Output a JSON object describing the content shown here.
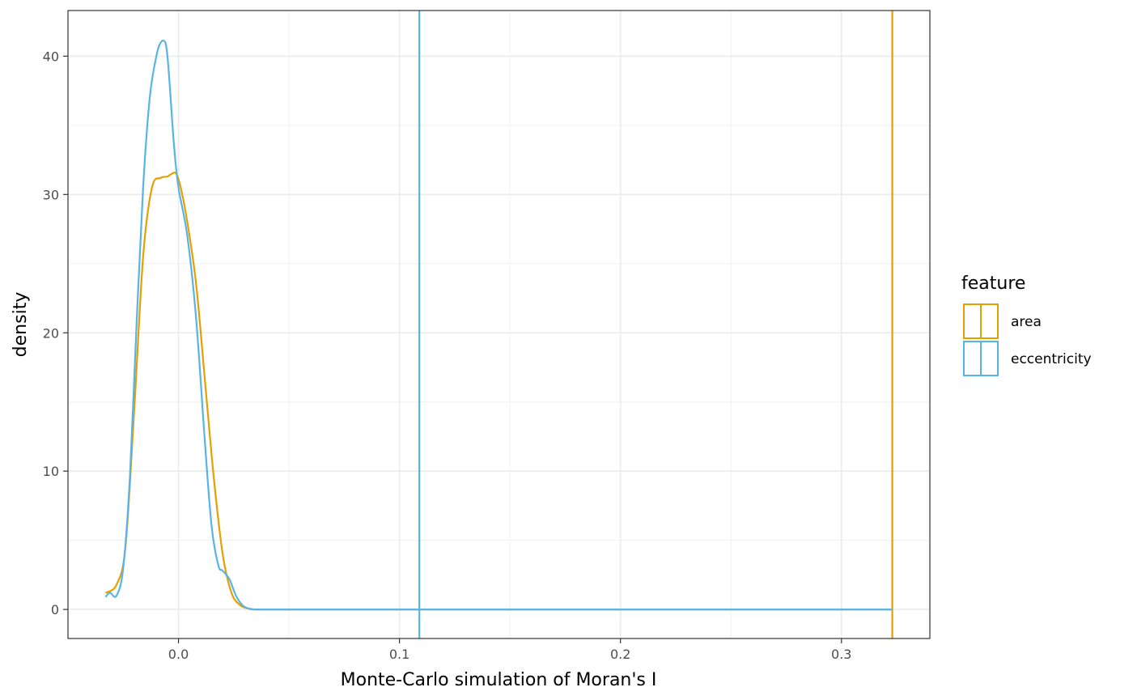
{
  "chart_data": {
    "type": "line",
    "subtype": "density",
    "xlabel": "Monte-Carlo simulation of Moran's I",
    "ylabel": "density",
    "xlim": [
      -0.05,
      0.34
    ],
    "ylim": [
      -2.1,
      43.3
    ],
    "xticks": [
      0.0,
      0.1,
      0.2,
      0.3
    ],
    "xtick_labels": [
      "0.0",
      "0.1",
      "0.2",
      "0.3"
    ],
    "yticks": [
      0,
      10,
      20,
      30,
      40
    ],
    "ytick_labels": [
      "0",
      "10",
      "20",
      "30",
      "40"
    ],
    "grid": true,
    "legend": {
      "title": "feature",
      "position": "right",
      "entries": [
        "area",
        "eccentricity"
      ]
    },
    "series": [
      {
        "name": "area",
        "color": "#E69F00",
        "observed_value": 0.323,
        "x": [
          -0.033,
          -0.028,
          -0.024,
          -0.02,
          -0.016,
          -0.012,
          -0.008,
          -0.005,
          -0.003,
          -0.001,
          0.001,
          0.004,
          0.008,
          0.012,
          0.016,
          0.02,
          0.024,
          0.028,
          0.032,
          0.036,
          0.045,
          0.1,
          0.2,
          0.3,
          0.323
        ],
        "y": [
          1.2,
          1.8,
          4.5,
          14.5,
          25.5,
          30.5,
          31.2,
          31.3,
          31.5,
          31.5,
          30.5,
          28.0,
          23.5,
          16.5,
          9.5,
          4.0,
          1.2,
          0.3,
          0.05,
          0.0,
          0.0,
          0.0,
          0.0,
          0.0,
          0.0
        ]
      },
      {
        "name": "eccentricity",
        "color": "#56B4E9",
        "observed_value": 0.109,
        "x": [
          -0.033,
          -0.031,
          -0.028,
          -0.025,
          -0.022,
          -0.019,
          -0.016,
          -0.013,
          -0.01,
          -0.008,
          -0.006,
          -0.005,
          -0.004,
          -0.002,
          0.0,
          0.004,
          0.008,
          0.012,
          0.015,
          0.018,
          0.02,
          0.023,
          0.026,
          0.029,
          0.032,
          0.035,
          0.04,
          0.1,
          0.2,
          0.3,
          0.323
        ],
        "y": [
          0.9,
          1.2,
          1.0,
          3.0,
          9.5,
          20.5,
          30.5,
          37.0,
          40.0,
          41.0,
          41.0,
          40.0,
          38.0,
          33.5,
          30.5,
          27.0,
          21.0,
          12.0,
          6.0,
          3.2,
          2.8,
          2.2,
          1.0,
          0.3,
          0.05,
          0.0,
          0.0,
          0.0,
          0.0,
          0.0,
          0.0
        ]
      }
    ]
  }
}
